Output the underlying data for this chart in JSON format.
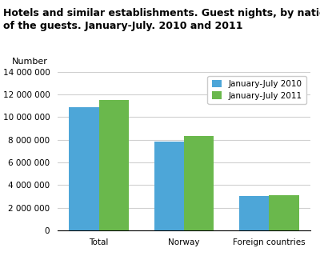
{
  "title": "Hotels and similar establishments. Guest nights, by nationality\nof the guests. January-July. 2010 and 2011",
  "ylabel": "Number",
  "categories": [
    "Total",
    "Norway",
    "Foreign countries"
  ],
  "series": [
    {
      "label": "January-July 2010",
      "color": "#4da6d8",
      "values": [
        10900000,
        7850000,
        3050000
      ]
    },
    {
      "label": "January-July 2011",
      "color": "#6ab84c",
      "values": [
        11500000,
        8350000,
        3100000
      ]
    }
  ],
  "ylim": [
    0,
    14000000
  ],
  "yticks": [
    0,
    2000000,
    4000000,
    6000000,
    8000000,
    10000000,
    12000000,
    14000000
  ],
  "bar_width": 0.35,
  "legend_loc": "upper right",
  "title_fontsize": 9,
  "axis_fontsize": 8,
  "tick_fontsize": 7.5,
  "background_color": "#ffffff",
  "grid_color": "#d0d0d0"
}
